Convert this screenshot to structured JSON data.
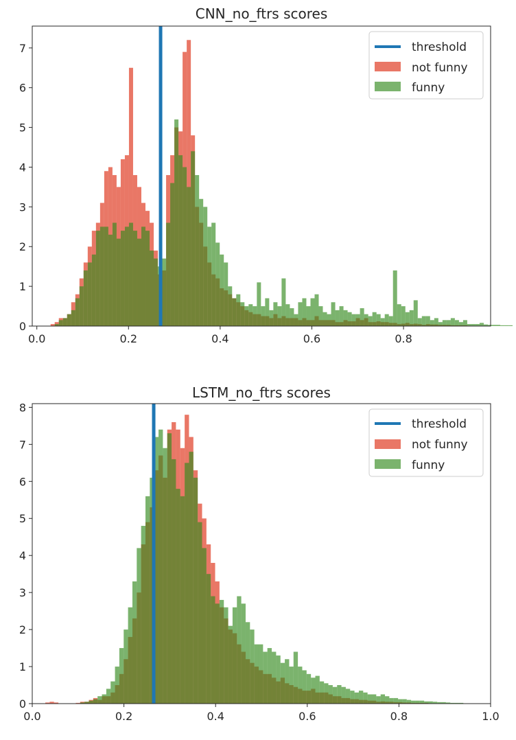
{
  "colors": {
    "threshold": "#1f77b4",
    "not_funny": "#e24a33",
    "funny": "#348a1e",
    "axes": "#262626"
  },
  "chart_data": [
    {
      "type": "histogram",
      "title": "CNN_no_ftrs scores",
      "xlabel": "",
      "ylabel": "",
      "xlim": [
        -0.01,
        0.99
      ],
      "ylim": [
        0,
        7.55
      ],
      "xticks": [
        0.0,
        0.2,
        0.4,
        0.6,
        0.8
      ],
      "xtick_labels": [
        "0.0",
        "0.2",
        "0.4",
        "0.6",
        "0.8"
      ],
      "yticks": [
        0,
        1,
        2,
        3,
        4,
        5,
        6,
        7
      ],
      "ytick_labels": [
        "0",
        "1",
        "2",
        "3",
        "4",
        "5",
        "6",
        "7"
      ],
      "threshold": 0.27,
      "legend_position": "top-right",
      "legend": [
        "threshold",
        "not funny",
        "funny"
      ],
      "grid": false,
      "series": [
        {
          "name": "not funny",
          "bin_start": 0.03,
          "bin_width": 0.009,
          "values": [
            0.05,
            0.1,
            0.2,
            0.2,
            0.3,
            0.6,
            0.8,
            1.2,
            1.6,
            2.0,
            2.4,
            2.6,
            3.1,
            3.9,
            4.0,
            3.8,
            3.5,
            4.2,
            4.3,
            6.5,
            3.8,
            3.5,
            3.1,
            2.9,
            2.6,
            1.9,
            1.3,
            1.4,
            3.8,
            4.3,
            5.0,
            4.9,
            6.9,
            7.2,
            4.8,
            3.0,
            2.6,
            2.0,
            1.6,
            1.3,
            1.2,
            0.95,
            0.9,
            0.8,
            0.7,
            0.6,
            0.5,
            0.4,
            0.35,
            0.3,
            0.3,
            0.25,
            0.25,
            0.2,
            0.3,
            0.2,
            0.25,
            0.2,
            0.2,
            0.2,
            0.15,
            0.2,
            0.15,
            0.15,
            0.25,
            0.15,
            0.15,
            0.15,
            0.15,
            0.1,
            0.1,
            0.15,
            0.12,
            0.12,
            0.2,
            0.15,
            0.2,
            0.1,
            0.1,
            0.12,
            0.1,
            0.1,
            0.08,
            0.08,
            0.05,
            0.06,
            0.08,
            0.05,
            0.06,
            0.05,
            0.03,
            0.05,
            0.04,
            0.04,
            0.03,
            0.03,
            0.03,
            0.02,
            0.02,
            0.02,
            0.02,
            0.01
          ]
        },
        {
          "name": "funny",
          "bin_start": 0.03,
          "bin_width": 0.009,
          "values": [
            0.0,
            0.05,
            0.15,
            0.2,
            0.3,
            0.4,
            0.7,
            1.0,
            1.4,
            1.6,
            1.8,
            2.4,
            2.5,
            2.5,
            2.3,
            2.6,
            2.2,
            2.4,
            2.5,
            2.6,
            2.4,
            2.2,
            2.5,
            2.4,
            1.9,
            1.7,
            1.5,
            1.7,
            2.6,
            3.6,
            5.2,
            4.3,
            4.0,
            3.5,
            4.4,
            3.8,
            3.2,
            3.0,
            2.5,
            2.6,
            2.1,
            1.8,
            1.6,
            1.0,
            0.7,
            0.8,
            0.6,
            0.5,
            0.55,
            0.5,
            1.1,
            0.5,
            0.7,
            0.4,
            0.6,
            0.5,
            1.2,
            0.55,
            0.45,
            0.3,
            0.6,
            0.7,
            0.5,
            0.7,
            0.8,
            0.5,
            0.35,
            0.3,
            0.6,
            0.4,
            0.5,
            0.4,
            0.35,
            0.3,
            0.3,
            0.45,
            0.3,
            0.25,
            0.35,
            0.3,
            0.2,
            0.3,
            0.25,
            1.4,
            0.55,
            0.5,
            0.35,
            0.4,
            0.65,
            0.2,
            0.25,
            0.25,
            0.15,
            0.2,
            0.1,
            0.15,
            0.15,
            0.2,
            0.15,
            0.1,
            0.15,
            0.05,
            0.05,
            0.05,
            0.08,
            0.04,
            0.03,
            0.03,
            0.03,
            0.02,
            0.02,
            0.02
          ]
        }
      ]
    },
    {
      "type": "histogram",
      "title": "LSTM_no_ftrs scores",
      "xlabel": "",
      "ylabel": "",
      "xlim": [
        0.0,
        1.0
      ],
      "ylim": [
        0,
        8.1
      ],
      "xticks": [
        0.0,
        0.2,
        0.4,
        0.6,
        0.8,
        1.0
      ],
      "xtick_labels": [
        "0.0",
        "0.2",
        "0.4",
        "0.6",
        "0.8",
        "1.0"
      ],
      "yticks": [
        0,
        1,
        2,
        3,
        4,
        5,
        6,
        7,
        8
      ],
      "ytick_labels": [
        "0",
        "1",
        "2",
        "3",
        "4",
        "5",
        "6",
        "7",
        "8"
      ],
      "threshold": 0.265,
      "legend_position": "top-right",
      "legend": [
        "threshold",
        "not funny",
        "funny"
      ],
      "grid": false,
      "series": [
        {
          "name": "not funny",
          "bin_start": 0.0,
          "bin_width": 0.0095,
          "values": [
            0,
            0,
            0,
            0.03,
            0.05,
            0.03,
            0,
            0,
            0,
            0,
            0.02,
            0.05,
            0.05,
            0.1,
            0.15,
            0.1,
            0.2,
            0.2,
            0.3,
            0.5,
            0.8,
            1.2,
            1.8,
            2.3,
            3.0,
            4.3,
            4.9,
            5.3,
            6.3,
            6.7,
            6.1,
            7.4,
            7.6,
            7.4,
            6.9,
            7.8,
            7.2,
            6.3,
            5.4,
            5.0,
            4.3,
            3.8,
            3.3,
            2.6,
            2.3,
            2.0,
            1.9,
            1.6,
            1.4,
            1.2,
            1.1,
            1.0,
            0.9,
            0.8,
            0.8,
            0.7,
            0.6,
            0.7,
            0.55,
            0.5,
            0.45,
            0.4,
            0.35,
            0.35,
            0.4,
            0.3,
            0.3,
            0.3,
            0.25,
            0.2,
            0.2,
            0.15,
            0.15,
            0.12,
            0.12,
            0.1,
            0.1,
            0.08,
            0.08,
            0.05,
            0.06,
            0.05,
            0.05,
            0.04,
            0.04,
            0.03,
            0.03,
            0.02,
            0.02,
            0.02,
            0.02,
            0.01
          ]
        },
        {
          "name": "funny",
          "bin_start": 0.0,
          "bin_width": 0.0095,
          "values": [
            0,
            0,
            0,
            0,
            0,
            0,
            0,
            0,
            0,
            0,
            0,
            0.03,
            0.05,
            0.08,
            0.12,
            0.2,
            0.25,
            0.4,
            0.6,
            1.0,
            1.5,
            2.0,
            2.6,
            3.3,
            4.2,
            4.8,
            5.6,
            6.1,
            7.2,
            7.4,
            6.9,
            7.3,
            6.6,
            5.8,
            5.6,
            6.5,
            6.8,
            6.1,
            4.9,
            4.2,
            3.5,
            2.9,
            2.7,
            2.8,
            2.6,
            2.1,
            2.6,
            2.9,
            2.7,
            2.2,
            2.0,
            1.6,
            1.6,
            1.4,
            1.5,
            1.4,
            1.3,
            1.1,
            1.2,
            1.0,
            1.4,
            1.0,
            0.9,
            0.8,
            0.7,
            0.75,
            0.6,
            0.55,
            0.5,
            0.45,
            0.5,
            0.45,
            0.4,
            0.35,
            0.3,
            0.35,
            0.3,
            0.25,
            0.25,
            0.2,
            0.25,
            0.2,
            0.15,
            0.15,
            0.12,
            0.12,
            0.1,
            0.08,
            0.08,
            0.08,
            0.06,
            0.06,
            0.05,
            0.04,
            0.04,
            0.03,
            0.02,
            0.02,
            0.02
          ]
        }
      ]
    }
  ]
}
